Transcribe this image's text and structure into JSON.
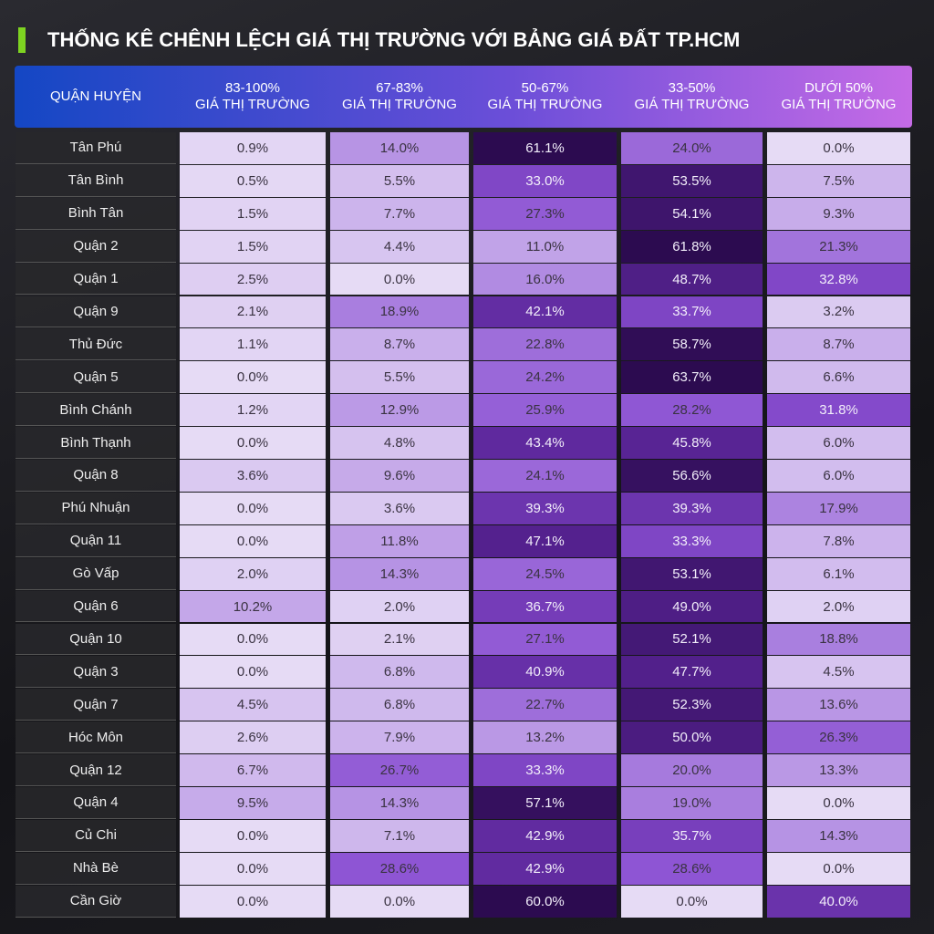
{
  "header": {
    "title": "THỐNG KÊ CHÊNH LỆCH GIÁ THỊ TRƯỜNG VỚI BẢNG GIÁ ĐẤT TP.HCM"
  },
  "table": {
    "columns": [
      [
        "QUẬN HUYỆN"
      ],
      [
        "83-100%",
        "GIÁ THỊ TRƯỜNG"
      ],
      [
        "67-83%",
        "GIÁ THỊ TRƯỜNG"
      ],
      [
        "50-67%",
        "GIÁ THỊ TRƯỜNG"
      ],
      [
        "33-50%",
        "GIÁ THỊ TRƯỜNG"
      ],
      [
        "DƯỚI 50%",
        "GIÁ THỊ TRƯỜNG"
      ]
    ],
    "rows": [
      [
        "Tân Phú",
        "0.9%",
        "14.0%",
        "61.1%",
        "24.0%",
        "0.0%"
      ],
      [
        "Tân Bình",
        "0.5%",
        "5.5%",
        "33.0%",
        "53.5%",
        "7.5%"
      ],
      [
        "Bình Tân",
        "1.5%",
        "7.7%",
        "27.3%",
        "54.1%",
        "9.3%"
      ],
      [
        "Quận 2",
        "1.5%",
        "4.4%",
        "11.0%",
        "61.8%",
        "21.3%"
      ],
      [
        "Quận 1",
        "2.5%",
        "0.0%",
        "16.0%",
        "48.7%",
        "32.8%"
      ],
      [
        "Quận 9",
        "2.1%",
        "18.9%",
        "42.1%",
        "33.7%",
        "3.2%"
      ],
      [
        "Thủ Đức",
        "1.1%",
        "8.7%",
        "22.8%",
        "58.7%",
        "8.7%"
      ],
      [
        "Quận 5",
        "0.0%",
        "5.5%",
        "24.2%",
        "63.7%",
        "6.6%"
      ],
      [
        "Bình Chánh",
        "1.2%",
        "12.9%",
        "25.9%",
        "28.2%",
        "31.8%"
      ],
      [
        "Bình Thạnh",
        "0.0%",
        "4.8%",
        "43.4%",
        "45.8%",
        "6.0%"
      ],
      [
        "Quận 8",
        "3.6%",
        "9.6%",
        "24.1%",
        "56.6%",
        "6.0%"
      ],
      [
        "Phú Nhuận",
        "0.0%",
        "3.6%",
        "39.3%",
        "39.3%",
        "17.9%"
      ],
      [
        "Quận 11",
        "0.0%",
        "11.8%",
        "47.1%",
        "33.3%",
        "7.8%"
      ],
      [
        "Gò Vấp",
        "2.0%",
        "14.3%",
        "24.5%",
        "53.1%",
        "6.1%"
      ],
      [
        "Quận 6",
        "10.2%",
        "2.0%",
        "36.7%",
        "49.0%",
        "2.0%"
      ],
      [
        "Quận 10",
        "0.0%",
        "2.1%",
        "27.1%",
        "52.1%",
        "18.8%"
      ],
      [
        "Quận 3",
        "0.0%",
        "6.8%",
        "40.9%",
        "47.7%",
        "4.5%"
      ],
      [
        "Quận  7",
        "4.5%",
        "6.8%",
        "22.7%",
        "52.3%",
        "13.6%"
      ],
      [
        "Hóc Môn",
        "2.6%",
        "7.9%",
        "13.2%",
        "50.0%",
        "26.3%"
      ],
      [
        "Quận 12",
        "6.7%",
        "26.7%",
        "33.3%",
        "20.0%",
        "13.3%"
      ],
      [
        "Quận 4",
        "9.5%",
        "14.3%",
        "57.1%",
        "19.0%",
        "0.0%"
      ],
      [
        "Củ Chi",
        "0.0%",
        "7.1%",
        "42.9%",
        "35.7%",
        "14.3%"
      ],
      [
        "Nhà Bè",
        "0.0%",
        "28.6%",
        "42.9%",
        "28.6%",
        "0.0%"
      ],
      [
        "Cần Giờ",
        "0.0%",
        "0.0%",
        "60.0%",
        "0.0%",
        "40.0%"
      ]
    ]
  }
}
